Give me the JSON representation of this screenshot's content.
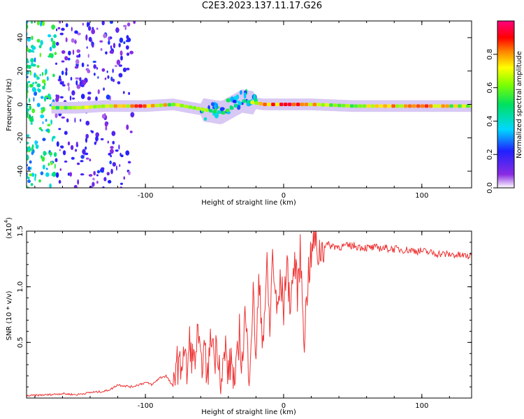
{
  "title": "C2E3.2023.137.11.17.G26",
  "chart_data": [
    {
      "type": "heatmap",
      "title": "C2E3.2023.137.11.17.G26",
      "xlabel": "Height of straight line (km)",
      "ylabel": "Frequency (Hz)",
      "xlim": [
        -186,
        136
      ],
      "ylim": [
        -50,
        50
      ],
      "xticks": [
        -100,
        0,
        100
      ],
      "xtick_labels": [
        "-100",
        "0",
        "100"
      ],
      "yticks": [
        -40,
        -20,
        0,
        20,
        40
      ],
      "ytick_labels": [
        "-40",
        "-20",
        "0",
        "20",
        "40"
      ],
      "colorbar": {
        "label": "Normalized spectral amplitude",
        "range": [
          0.0,
          1.0
        ],
        "ticks": [
          0.0,
          0.2,
          0.4,
          0.6,
          0.8
        ],
        "tick_labels": [
          "0.0",
          "0.2",
          "0.4",
          "0.6",
          "0.8"
        ],
        "colormap": "rainbow (white-violet-blue-cyan-green-yellow-red-magenta)"
      },
      "ridge": [
        {
          "x": -168,
          "freq": -2,
          "amp": 0.55
        },
        {
          "x": -150,
          "freq": -2,
          "amp": 0.6
        },
        {
          "x": -130,
          "freq": -1,
          "amp": 0.65
        },
        {
          "x": -110,
          "freq": -1,
          "amp": 0.75
        },
        {
          "x": -100,
          "freq": -1,
          "amp": 0.85
        },
        {
          "x": -80,
          "freq": 0,
          "amp": 0.6
        },
        {
          "x": -60,
          "freq": -3,
          "amp": 0.55
        },
        {
          "x": -45,
          "freq": -5,
          "amp": 0.5
        },
        {
          "x": -30,
          "freq": 2,
          "amp": 0.45
        },
        {
          "x": -15,
          "freq": 0,
          "amp": 0.8
        },
        {
          "x": 0,
          "freq": 0,
          "amp": 0.85
        },
        {
          "x": 20,
          "freq": 0,
          "amp": 0.7
        },
        {
          "x": 50,
          "freq": -1,
          "amp": 0.6
        },
        {
          "x": 85,
          "freq": -1,
          "amp": 0.75
        },
        {
          "x": 100,
          "freq": -1,
          "amp": 0.8
        },
        {
          "x": 130,
          "freq": -1,
          "amp": 0.6
        }
      ]
    },
    {
      "type": "line",
      "xlabel": "Height of straight line (km)",
      "ylabel": "SNR (10 * v/v)",
      "y_multiplier_label": "(x10",
      "y_multiplier_exp": "4",
      "y_multiplier_close": ")",
      "xlim": [
        -186,
        136
      ],
      "ylim": [
        0.0,
        1.5
      ],
      "xticks": [
        -100,
        0,
        100
      ],
      "xtick_labels": [
        "-100",
        "0",
        "100"
      ],
      "yticks": [
        0.5,
        1.0,
        1.5
      ],
      "ytick_labels": [
        "0.5",
        "1.0",
        "1.5"
      ],
      "color": "#ee3333",
      "x": [
        -186,
        -170,
        -160,
        -150,
        -140,
        -130,
        -125,
        -120,
        -110,
        -100,
        -95,
        -90,
        -85,
        -80,
        -78,
        -75,
        -72,
        -70,
        -68,
        -65,
        -62,
        -60,
        -58,
        -55,
        -52,
        -50,
        -48,
        -45,
        -42,
        -40,
        -38,
        -35,
        -32,
        -30,
        -28,
        -25,
        -22,
        -20,
        -18,
        -15,
        -12,
        -10,
        -8,
        -5,
        -2,
        0,
        2,
        5,
        8,
        10,
        12,
        15,
        18,
        20,
        22,
        25,
        28,
        30,
        40,
        50,
        60,
        70,
        80,
        90,
        100,
        110,
        120,
        130,
        136
      ],
      "y": [
        0.02,
        0.03,
        0.04,
        0.03,
        0.05,
        0.06,
        0.08,
        0.12,
        0.1,
        0.14,
        0.12,
        0.18,
        0.2,
        0.1,
        0.35,
        0.25,
        0.45,
        0.2,
        0.5,
        0.3,
        0.55,
        0.25,
        0.45,
        0.2,
        0.6,
        0.35,
        0.5,
        0.15,
        0.45,
        0.2,
        0.35,
        0.1,
        0.6,
        0.3,
        0.75,
        0.25,
        0.9,
        0.4,
        1.0,
        0.55,
        1.15,
        0.6,
        1.3,
        0.75,
        1.05,
        0.8,
        1.2,
        0.85,
        1.25,
        0.95,
        1.3,
        0.55,
        1.15,
        1.25,
        1.45,
        1.3,
        1.35,
        1.38,
        1.36,
        1.37,
        1.35,
        1.35,
        1.34,
        1.33,
        1.32,
        1.3,
        1.29,
        1.28,
        1.27
      ]
    }
  ]
}
